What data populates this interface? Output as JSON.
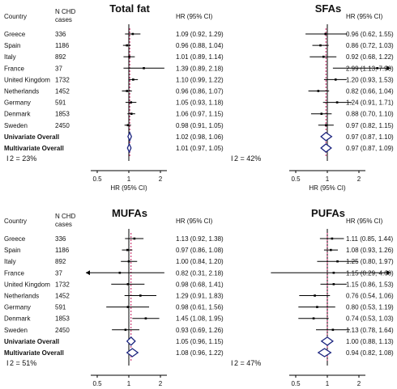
{
  "headers": {
    "country": "Country",
    "cases_line1": "N CHD",
    "cases_line2": "cases",
    "hr_ci": "HR (95% CI)"
  },
  "rows": [
    {
      "country": "Greece",
      "cases": "336"
    },
    {
      "country": "Spain",
      "cases": "1186"
    },
    {
      "country": "Italy",
      "cases": "892"
    },
    {
      "country": "France",
      "cases": "37"
    },
    {
      "country": "United Kingdom",
      "cases": "1732"
    },
    {
      "country": "Netherlands",
      "cases": "1452"
    },
    {
      "country": "Germany",
      "cases": "591"
    },
    {
      "country": "Denmark",
      "cases": "1853"
    },
    {
      "country": "Sweden",
      "cases": "2450"
    },
    {
      "country": "Univariate Overall",
      "cases": "",
      "bold": true
    },
    {
      "country": "Multivariate Overall",
      "cases": "",
      "bold": true
    }
  ],
  "colors": {
    "estimate": "#000000",
    "overall": "#1a237e",
    "null_line": "#000000",
    "overall_line": "#c2185b"
  },
  "chart_data": [
    {
      "type": "forest",
      "title": "Total fat",
      "xlabel": "HR (95% CI)",
      "xscale": "log",
      "xlim": [
        0.35,
        3
      ],
      "xticks": [
        0.5,
        1,
        2
      ],
      "xtick_labels": [
        "0.5",
        "1",
        "2"
      ],
      "i2_label": "I",
      "i2_value": "2 = 23%",
      "estimates": [
        {
          "hr": 1.09,
          "lo": 0.92,
          "hi": 1.29,
          "label": "1.09 (0.92, 1.29)"
        },
        {
          "hr": 0.96,
          "lo": 0.88,
          "hi": 1.04,
          "label": "0.96 (0.88, 1.04)"
        },
        {
          "hr": 1.01,
          "lo": 0.89,
          "hi": 1.14,
          "label": "1.01 (0.89, 1.14)"
        },
        {
          "hr": 1.39,
          "lo": 0.89,
          "hi": 2.18,
          "label": "1.39 (0.89, 2.18)"
        },
        {
          "hr": 1.1,
          "lo": 0.99,
          "hi": 1.22,
          "label": "1.10 (0.99, 1.22)"
        },
        {
          "hr": 0.96,
          "lo": 0.86,
          "hi": 1.07,
          "label": "0.96 (0.86, 1.07)"
        },
        {
          "hr": 1.05,
          "lo": 0.93,
          "hi": 1.18,
          "label": "1.05 (0.93, 1.18)"
        },
        {
          "hr": 1.06,
          "lo": 0.97,
          "hi": 1.15,
          "label": "1.06 (0.97, 1.15)"
        },
        {
          "hr": 0.98,
          "lo": 0.91,
          "hi": 1.05,
          "label": "0.98 (0.91, 1.05)"
        },
        {
          "hr": 1.02,
          "lo": 0.98,
          "hi": 1.06,
          "label": "1.02 (0.98, 1.06)",
          "overall": true
        },
        {
          "hr": 1.01,
          "lo": 0.97,
          "hi": 1.05,
          "label": "1.01 (0.97, 1.05)",
          "overall": true
        }
      ]
    },
    {
      "type": "forest",
      "title": "SFAs",
      "xlabel": "HR (95% CI)",
      "xscale": "log",
      "xlim": [
        0.35,
        3
      ],
      "xticks": [
        0.5,
        1,
        2
      ],
      "xtick_labels": [
        "0.5",
        "1",
        "2"
      ],
      "i2_label": "I",
      "i2_value": "2 = 42%",
      "estimates": [
        {
          "hr": 0.96,
          "lo": 0.62,
          "hi": 1.55,
          "label": "0.96 (0.62, 1.55)"
        },
        {
          "hr": 0.86,
          "lo": 0.72,
          "hi": 1.03,
          "label": "0.86 (0.72, 1.03)"
        },
        {
          "hr": 0.92,
          "lo": 0.68,
          "hi": 1.22,
          "label": "0.92 (0.68, 1.22)"
        },
        {
          "hr": 2.99,
          "lo": 1.13,
          "hi": 7.9,
          "label": "2.99 (1.13, 7.90)"
        },
        {
          "hr": 1.2,
          "lo": 0.93,
          "hi": 1.53,
          "label": "1.20 (0.93, 1.53)"
        },
        {
          "hr": 0.82,
          "lo": 0.66,
          "hi": 1.04,
          "label": "0.82 (0.66, 1.04)"
        },
        {
          "hr": 1.24,
          "lo": 0.91,
          "hi": 1.71,
          "label": "1.24 (0.91, 1.71)"
        },
        {
          "hr": 0.88,
          "lo": 0.7,
          "hi": 1.1,
          "label": "0.88 (0.70, 1.10)"
        },
        {
          "hr": 0.97,
          "lo": 0.82,
          "hi": 1.15,
          "label": "0.97 (0.82, 1.15)"
        },
        {
          "hr": 0.97,
          "lo": 0.87,
          "hi": 1.1,
          "label": "0.97 (0.87, 1.10)",
          "overall": true
        },
        {
          "hr": 0.97,
          "lo": 0.87,
          "hi": 1.09,
          "label": "0.97 (0.87, 1.09)",
          "overall": true
        }
      ]
    },
    {
      "type": "forest",
      "title": "MUFAs",
      "xlabel": "HR (95% CI)",
      "xscale": "log",
      "xlim": [
        0.35,
        3
      ],
      "xticks": [
        0.5,
        1,
        2
      ],
      "xtick_labels": [
        "0.5",
        "1",
        "2"
      ],
      "i2_label": "I",
      "i2_value": "2 = 51%",
      "estimates": [
        {
          "hr": 1.13,
          "lo": 0.92,
          "hi": 1.38,
          "label": "1.13 (0.92, 1.38)"
        },
        {
          "hr": 0.97,
          "lo": 0.86,
          "hi": 1.08,
          "label": "0.97 (0.86, 1.08)"
        },
        {
          "hr": 1.0,
          "lo": 0.84,
          "hi": 1.2,
          "label": "1.00 (0.84, 1.20)"
        },
        {
          "hr": 0.82,
          "lo": 0.31,
          "hi": 2.18,
          "label": "0.82 (0.31, 2.18)"
        },
        {
          "hr": 0.98,
          "lo": 0.68,
          "hi": 1.41,
          "label": "0.98 (0.68, 1.41)"
        },
        {
          "hr": 1.29,
          "lo": 0.91,
          "hi": 1.83,
          "label": "1.29 (0.91, 1.83)"
        },
        {
          "hr": 0.98,
          "lo": 0.61,
          "hi": 1.56,
          "label": "0.98 (0.61, 1.56)"
        },
        {
          "hr": 1.45,
          "lo": 1.08,
          "hi": 1.95,
          "label": "1.45 (1.08, 1.95)"
        },
        {
          "hr": 0.93,
          "lo": 0.69,
          "hi": 1.26,
          "label": "0.93 (0.69, 1.26)"
        },
        {
          "hr": 1.05,
          "lo": 0.96,
          "hi": 1.15,
          "label": "1.05 (0.96, 1.15)",
          "overall": true
        },
        {
          "hr": 1.08,
          "lo": 0.96,
          "hi": 1.22,
          "label": "1.08 (0.96, 1.22)",
          "overall": true
        }
      ]
    },
    {
      "type": "forest",
      "title": "PUFAs",
      "xlabel": "HR (95% CI)",
      "xscale": "log",
      "xlim": [
        0.35,
        3
      ],
      "xticks": [
        0.5,
        1,
        2
      ],
      "xtick_labels": [
        "0.5",
        "1",
        "2"
      ],
      "i2_label": "I",
      "i2_value": "2 = 47%",
      "estimates": [
        {
          "hr": 1.11,
          "lo": 0.85,
          "hi": 1.44,
          "label": "1.11 (0.85, 1.44)"
        },
        {
          "hr": 1.08,
          "lo": 0.93,
          "hi": 1.26,
          "label": "1.08 (0.93, 1.26)"
        },
        {
          "hr": 1.25,
          "lo": 0.8,
          "hi": 1.97,
          "label": "1.25 (0.80, 1.97)"
        },
        {
          "hr": 1.15,
          "lo": 0.29,
          "hi": 4.6,
          "label": "1.15 (0.29, 4.60)"
        },
        {
          "hr": 1.15,
          "lo": 0.86,
          "hi": 1.53,
          "label": "1.15 (0.86, 1.53)"
        },
        {
          "hr": 0.76,
          "lo": 0.54,
          "hi": 1.06,
          "label": "0.76 (0.54, 1.06)"
        },
        {
          "hr": 0.8,
          "lo": 0.53,
          "hi": 1.19,
          "label": "0.80 (0.53, 1.19)"
        },
        {
          "hr": 0.74,
          "lo": 0.53,
          "hi": 1.03,
          "label": "0.74 (0.53, 1.03)"
        },
        {
          "hr": 1.13,
          "lo": 0.78,
          "hi": 1.64,
          "label": "1.13 (0.78, 1.64)"
        },
        {
          "hr": 1.0,
          "lo": 0.88,
          "hi": 1.13,
          "label": "1.00 (0.88, 1.13)",
          "overall": true
        },
        {
          "hr": 0.94,
          "lo": 0.82,
          "hi": 1.08,
          "label": "0.94 (0.82, 1.08)",
          "overall": true
        }
      ]
    }
  ]
}
